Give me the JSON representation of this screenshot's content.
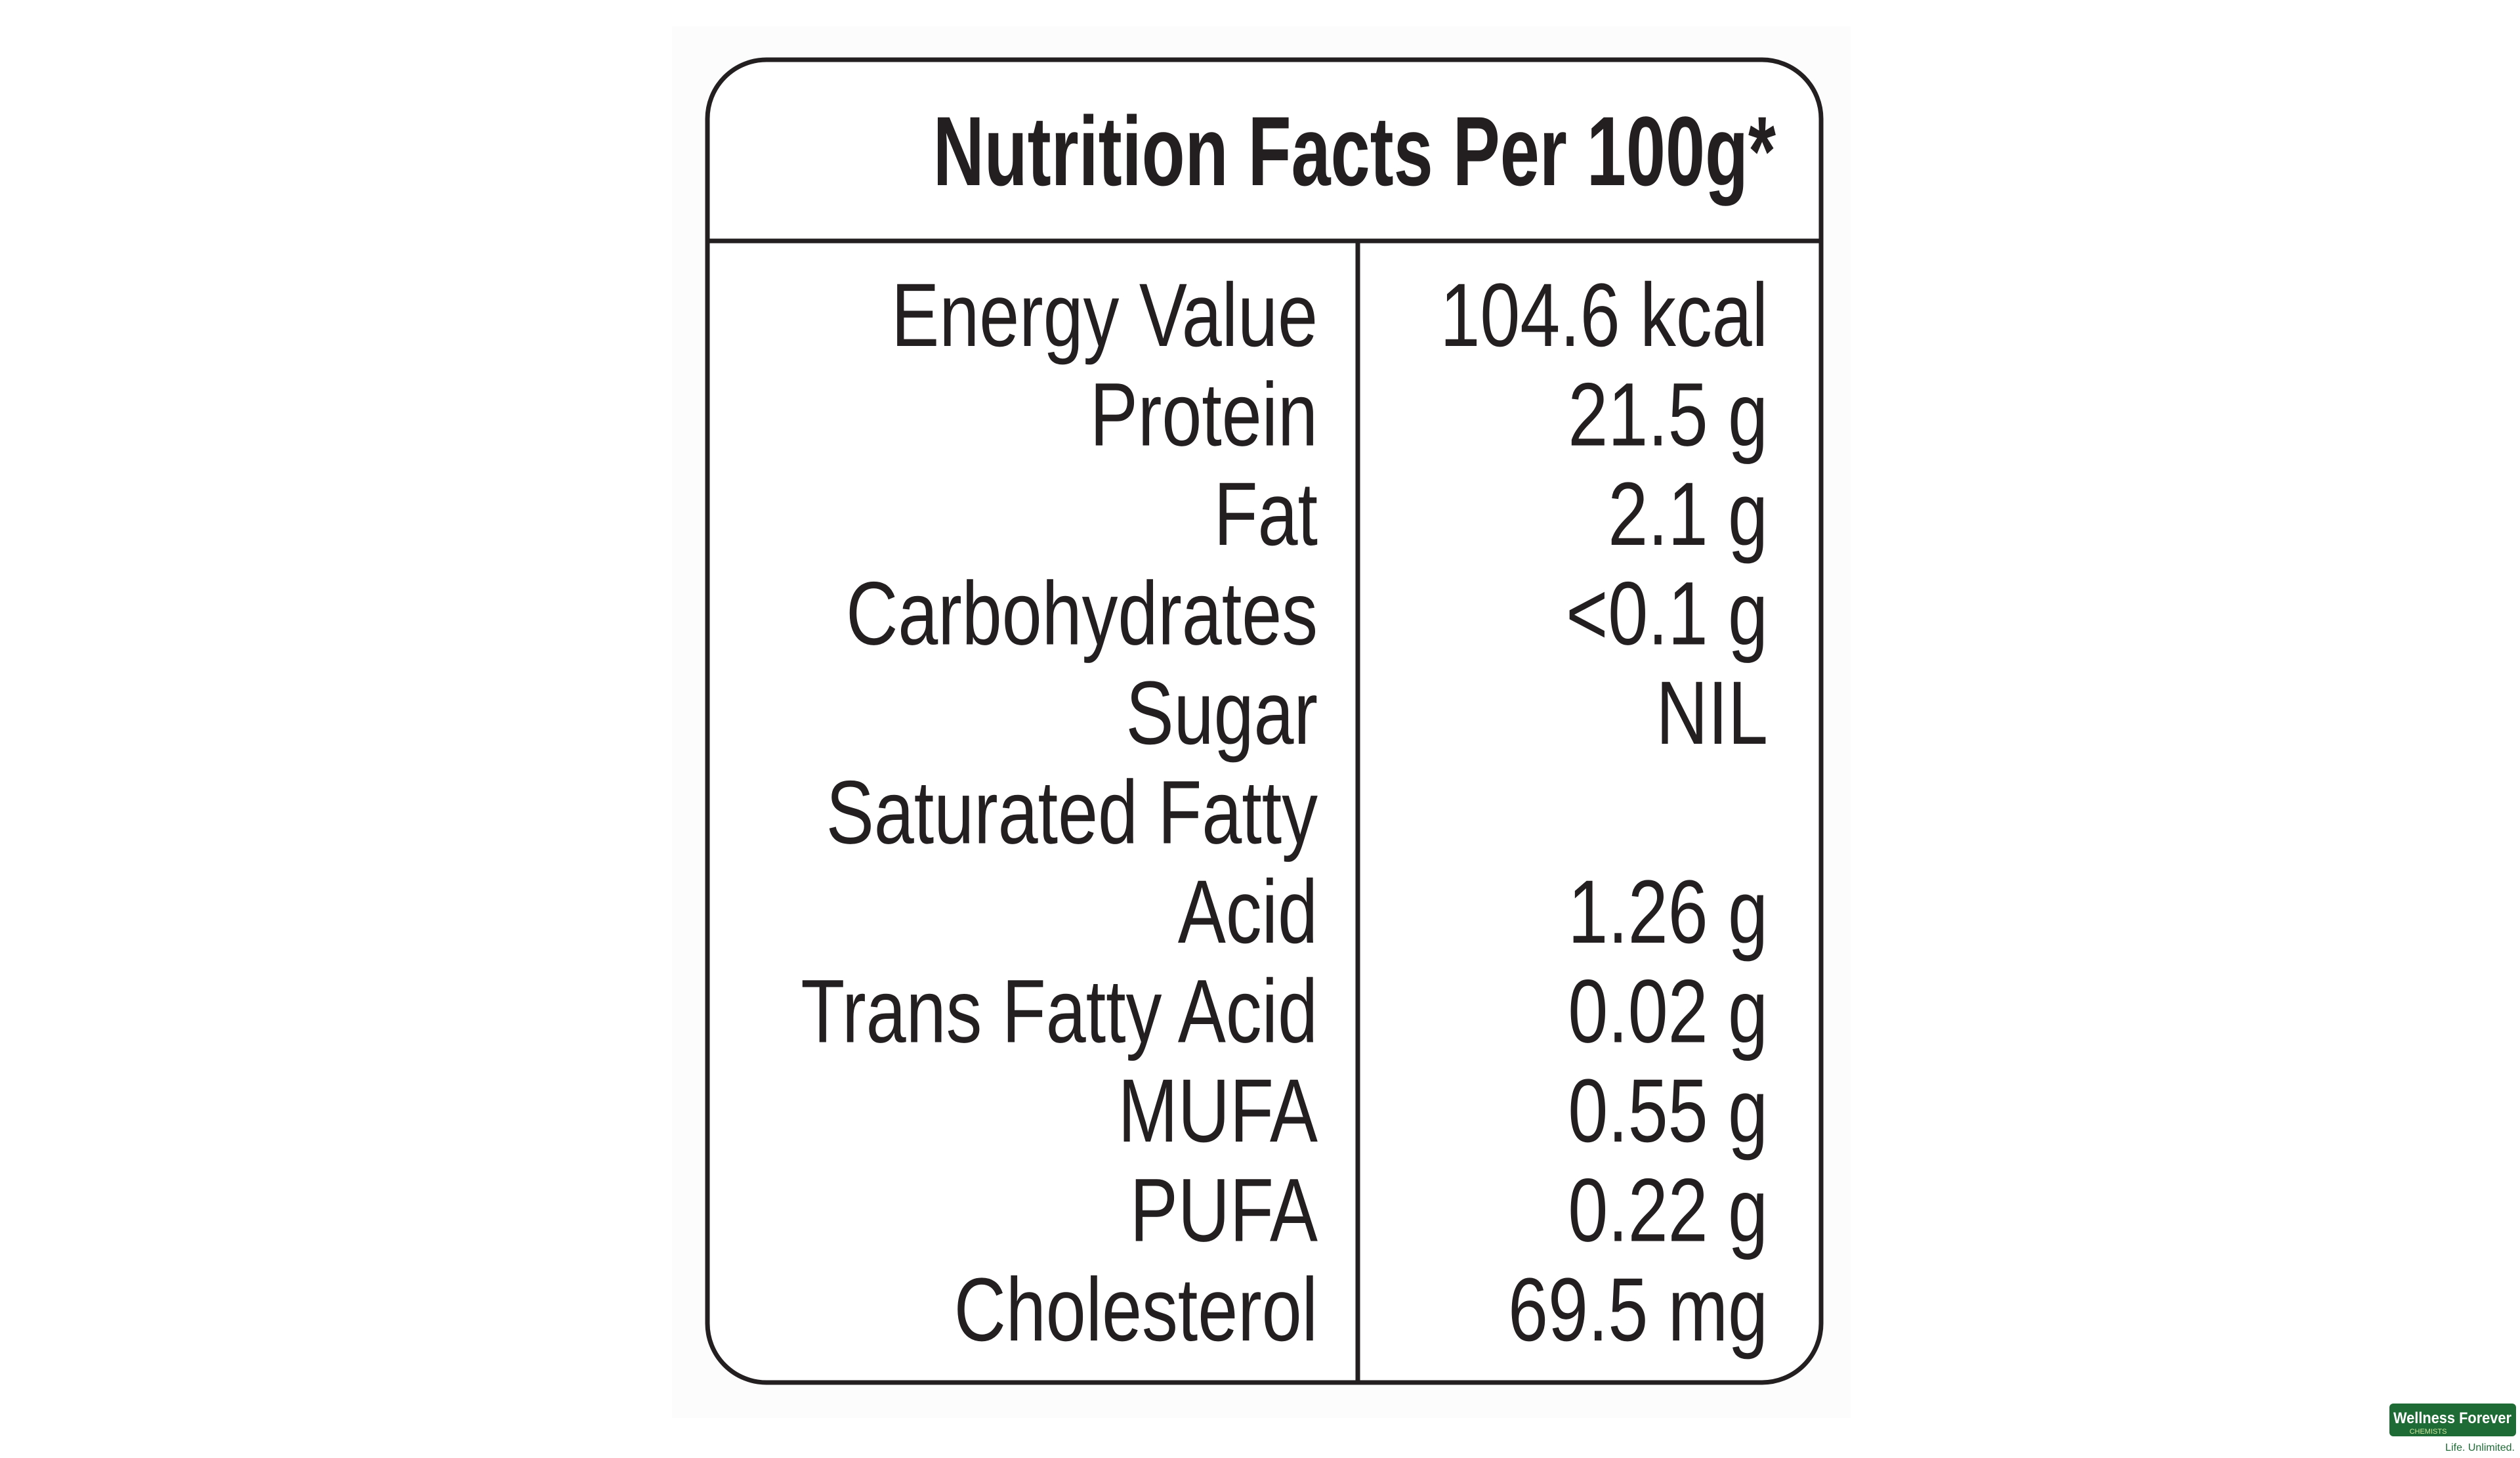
{
  "table": {
    "title": "Nutrition Facts Per 100g*",
    "rows": [
      {
        "label": [
          "Energy Value"
        ],
        "value": "104.6 kcal"
      },
      {
        "label": [
          "Protein"
        ],
        "value": "21.5 g"
      },
      {
        "label": [
          "Fat"
        ],
        "value": "2.1 g"
      },
      {
        "label": [
          "Carbohydrates"
        ],
        "value": "<0.1 g"
      },
      {
        "label": [
          "Sugar"
        ],
        "value": "NIL"
      },
      {
        "label": [
          "Saturated Fatty",
          "Acid"
        ],
        "value": "1.26 g"
      },
      {
        "label": [
          "Trans Fatty Acid"
        ],
        "value": "0.02 g"
      },
      {
        "label": [
          "MUFA"
        ],
        "value": "0.55 g"
      },
      {
        "label": [
          "PUFA"
        ],
        "value": "0.22 g"
      },
      {
        "label": [
          "Cholesterol"
        ],
        "value": "69.5 mg"
      }
    ]
  },
  "logo": {
    "name": "Wellness Forever",
    "subtitle": "CHEMISTS",
    "tagline": "Life. Unlimited."
  }
}
